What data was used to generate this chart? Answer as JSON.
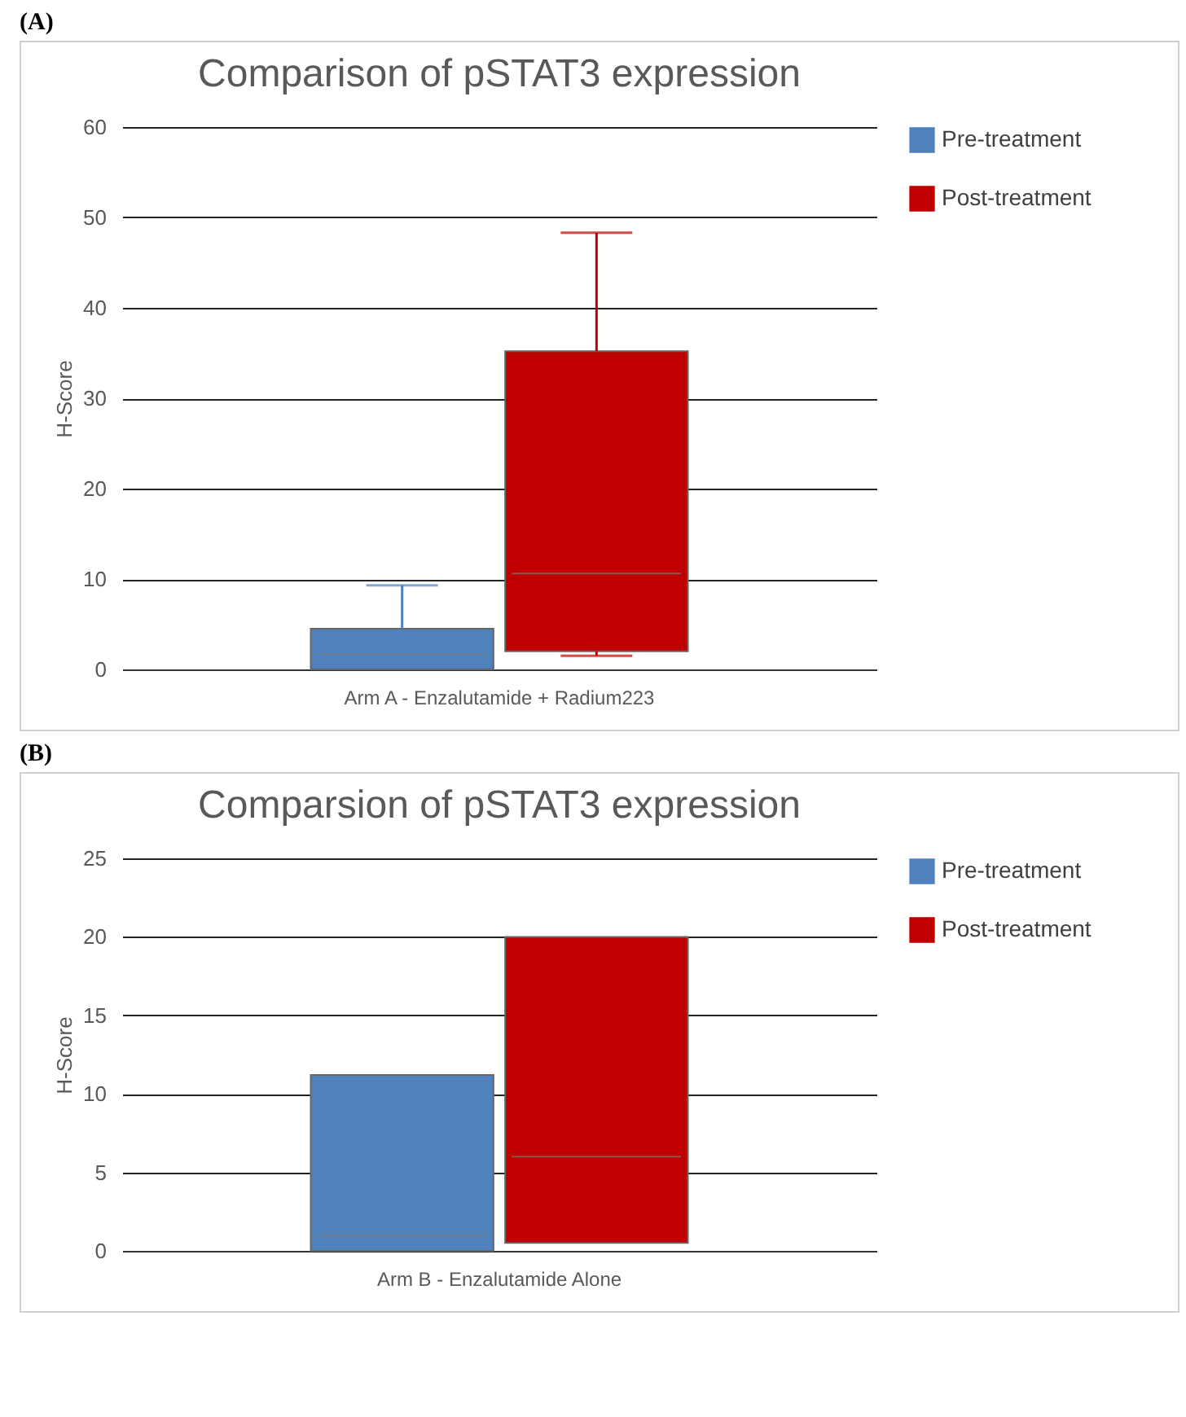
{
  "chart_data": [
    {
      "type": "box",
      "title": "Comparison of pSTAT3 expression",
      "ylabel": "H-Score",
      "annotations": [
        "(A)"
      ],
      "categories": [
        "Arm A - Enzalutamide + Radium223"
      ],
      "ylim": [
        0,
        60
      ],
      "yticks": [
        0,
        10,
        20,
        30,
        40,
        50,
        60
      ],
      "grid": "y",
      "legend": "right",
      "series": [
        {
          "name": "Pre-treatment",
          "color": "#4f81bd",
          "boxes": [
            {
              "low": 0,
              "q1": 0,
              "median": 1.7,
              "q3": 4.5,
              "high": 9.3
            }
          ]
        },
        {
          "name": "Post-treatment",
          "color": "#c00000",
          "boxes": [
            {
              "low": 1.5,
              "q1": 2,
              "median": 10.6,
              "q3": 35.2,
              "high": 48.3
            }
          ]
        }
      ]
    },
    {
      "type": "box",
      "title": "Comparsion of pSTAT3 expression",
      "ylabel": "H-Score",
      "annotations": [
        "(B)"
      ],
      "categories": [
        "Arm B - Enzalutamide Alone"
      ],
      "ylim": [
        0,
        25
      ],
      "yticks": [
        0,
        5,
        10,
        15,
        20,
        25
      ],
      "grid": "y",
      "legend": "right",
      "series": [
        {
          "name": "Pre-treatment",
          "color": "#4f81bd",
          "boxes": [
            {
              "low": 0,
              "q1": 0,
              "median": 1,
              "q3": 11.2,
              "high": 11.2
            }
          ]
        },
        {
          "name": "Post-treatment",
          "color": "#c00000",
          "boxes": [
            {
              "low": 0.5,
              "q1": 0.5,
              "median": 6,
              "q3": 20,
              "high": 20
            }
          ]
        }
      ]
    }
  ]
}
